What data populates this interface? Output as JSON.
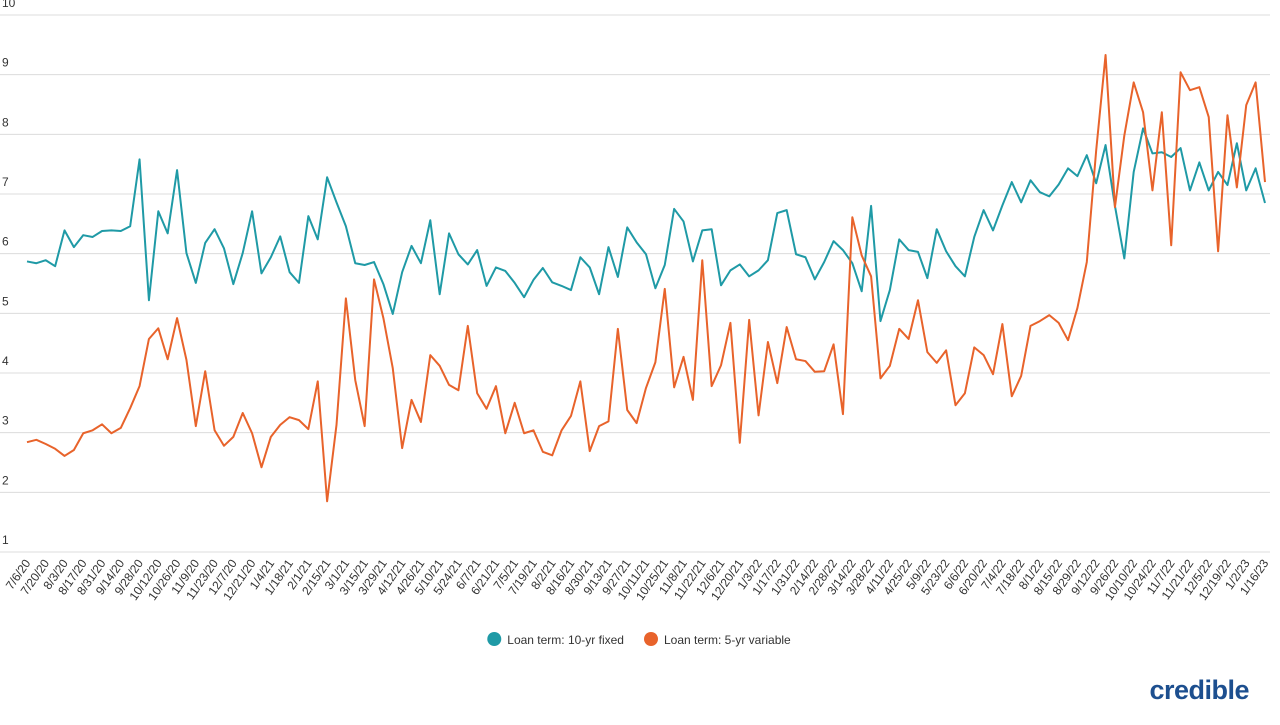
{
  "chart_data": {
    "type": "line",
    "categories": [
      "7/6/20",
      null,
      "7/20/20",
      null,
      "8/3/20",
      null,
      "8/17/20",
      null,
      "8/31/20",
      null,
      "9/14/20",
      null,
      "9/28/20",
      null,
      "10/12/20",
      null,
      "10/26/20",
      null,
      "11/9/20",
      null,
      "11/23/20",
      null,
      "12/7/20",
      null,
      "12/21/20",
      null,
      "1/4/21",
      null,
      "1/18/21",
      null,
      "2/1/21",
      null,
      "2/15/21",
      null,
      "3/1/21",
      null,
      "3/15/21",
      null,
      "3/29/21",
      null,
      "4/12/21",
      null,
      "4/26/21",
      null,
      "5/10/21",
      null,
      "5/24/21",
      null,
      "6/7/21",
      null,
      "6/21/21",
      null,
      "7/5/21",
      null,
      "7/19/21",
      null,
      "8/2/21",
      null,
      "8/16/21",
      null,
      "8/30/21",
      null,
      "9/13/21",
      null,
      "9/27/21",
      null,
      "10/11/21",
      null,
      "10/25/21",
      null,
      "11/8/21",
      null,
      "11/22/21",
      null,
      "12/6/21",
      null,
      "12/20/21",
      null,
      "1/3/22",
      null,
      "1/17/22",
      null,
      "1/31/22",
      null,
      "2/14/22",
      null,
      "2/28/22",
      null,
      "3/14/22",
      null,
      "3/28/22",
      null,
      "4/11/22",
      null,
      "4/25/22",
      null,
      "5/9/22",
      null,
      "5/23/22",
      null,
      "6/6/22",
      null,
      "6/20/22",
      null,
      "7/4/22",
      null,
      "7/18/22",
      null,
      "8/1/22",
      null,
      "8/15/22",
      null,
      "8/29/22",
      null,
      "9/12/22",
      null,
      "9/26/22",
      null,
      "10/10/22",
      null,
      "10/24/22",
      null,
      "11/7/22",
      null,
      "11/21/22",
      null,
      "12/5/22",
      null,
      "12/19/22",
      null,
      "1/2/23",
      null,
      "1/16/23"
    ],
    "series": [
      {
        "name": "Loan term: 10-yr fixed",
        "color": "#1f9aa6",
        "values": [
          5.87,
          5.84,
          5.89,
          5.79,
          6.39,
          6.11,
          6.31,
          6.28,
          6.38,
          6.39,
          6.38,
          6.46,
          7.58,
          5.22,
          6.71,
          6.34,
          7.4,
          6.01,
          5.51,
          6.18,
          6.41,
          6.09,
          5.49,
          6.01,
          6.71,
          5.67,
          5.94,
          6.29,
          5.69,
          5.51,
          6.63,
          6.24,
          7.28,
          6.86,
          6.46,
          5.84,
          5.81,
          5.86,
          5.49,
          4.99,
          5.69,
          6.13,
          5.84,
          6.56,
          5.32,
          6.34,
          5.99,
          5.82,
          6.06,
          5.46,
          5.77,
          5.71,
          5.51,
          5.27,
          5.56,
          5.76,
          5.52,
          5.46,
          5.39,
          5.94,
          5.77,
          5.32,
          6.11,
          5.61,
          6.44,
          6.19,
          5.99,
          5.42,
          5.81,
          6.75,
          6.54,
          5.87,
          6.39,
          6.41,
          5.47,
          5.72,
          5.82,
          5.62,
          5.72,
          5.89,
          6.68,
          6.73,
          5.99,
          5.94,
          5.57,
          5.86,
          6.21,
          6.06,
          5.84,
          5.37,
          6.8,
          4.87,
          5.39,
          6.24,
          6.06,
          6.03,
          5.59,
          6.41,
          6.04,
          5.79,
          5.62,
          6.28,
          6.73,
          6.39,
          6.81,
          7.2,
          6.86,
          7.23,
          7.03,
          6.96,
          7.16,
          7.43,
          7.3,
          7.65,
          7.18,
          7.82,
          6.8,
          5.92,
          7.37,
          8.1,
          7.68,
          7.7,
          7.62,
          7.77,
          7.06,
          7.53,
          7.06,
          7.37,
          7.15,
          7.85,
          7.06,
          7.43,
          6.85
        ]
      },
      {
        "name": "Loan term: 5-yr variable",
        "color": "#e8632b",
        "values": [
          2.84,
          2.88,
          2.81,
          2.73,
          2.61,
          2.71,
          2.99,
          3.04,
          3.14,
          2.99,
          3.08,
          3.41,
          3.78,
          4.57,
          4.75,
          4.23,
          4.92,
          4.22,
          3.11,
          4.03,
          3.04,
          2.78,
          2.93,
          3.33,
          2.99,
          2.42,
          2.93,
          3.13,
          3.26,
          3.21,
          3.06,
          3.86,
          1.85,
          3.13,
          5.25,
          3.88,
          3.11,
          5.57,
          4.92,
          4.08,
          2.74,
          3.55,
          3.18,
          4.3,
          4.12,
          3.8,
          3.71,
          4.79,
          3.66,
          3.4,
          3.78,
          2.99,
          3.5,
          2.99,
          3.04,
          2.68,
          2.62,
          3.04,
          3.28,
          3.86,
          2.69,
          3.11,
          3.19,
          4.74,
          3.38,
          3.16,
          3.75,
          4.18,
          5.41,
          3.76,
          4.27,
          3.55,
          5.89,
          3.78,
          4.13,
          4.84,
          2.83,
          4.89,
          3.29,
          4.52,
          3.83,
          4.77,
          4.23,
          4.2,
          4.02,
          4.03,
          4.48,
          3.31,
          6.61,
          5.97,
          5.62,
          3.91,
          4.12,
          4.74,
          4.57,
          5.22,
          4.35,
          4.17,
          4.38,
          3.46,
          3.66,
          4.43,
          4.3,
          3.98,
          4.82,
          3.61,
          3.95,
          4.79,
          4.87,
          4.97,
          4.84,
          4.55,
          5.09,
          5.86,
          7.73,
          9.33,
          6.78,
          7.98,
          8.87,
          8.37,
          7.06,
          8.37,
          6.14,
          9.04,
          8.74,
          8.79,
          8.29,
          6.04,
          8.32,
          7.11,
          8.49,
          8.87,
          7.2
        ]
      }
    ],
    "ylim": [
      1,
      10
    ],
    "yticks": [
      1,
      2,
      3,
      4,
      5,
      6,
      7,
      8,
      9,
      10
    ],
    "grid": true,
    "legend": "bottom"
  },
  "brand": "credible"
}
